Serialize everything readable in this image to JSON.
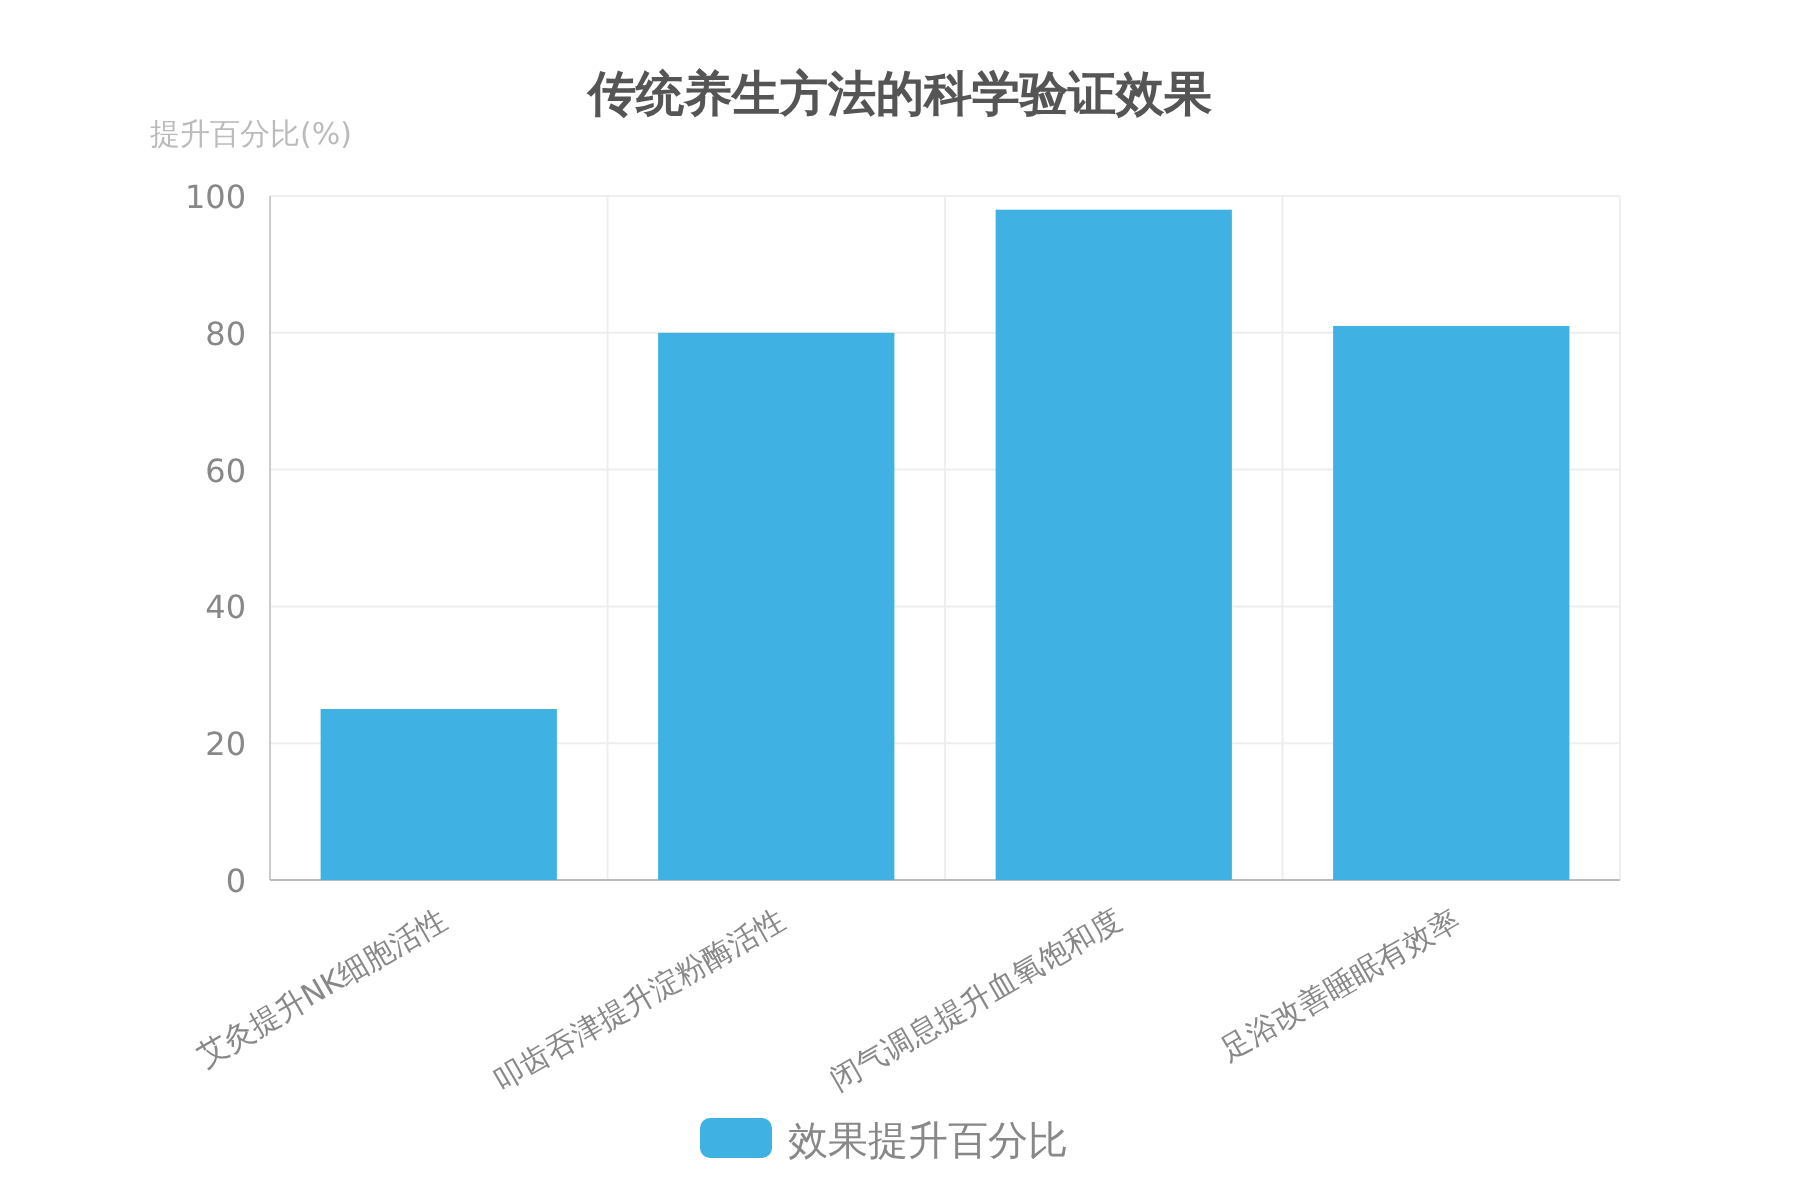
{
  "chart_data": {
    "type": "bar",
    "title": "传统养生方法的科学验证效果",
    "ylabel": "提升百分比(%)",
    "categories": [
      "艾灸提升NK细胞活性",
      "叩齿吞津提升淀粉酶活性",
      "闭气调息提升血氧饱和度",
      "足浴改善睡眠有效率"
    ],
    "series": [
      {
        "name": "效果提升百分比",
        "color": "#3fb1e3",
        "values": [
          25,
          80,
          98,
          81
        ]
      }
    ],
    "ylim": [
      0,
      100
    ],
    "yticks": [
      0,
      20,
      40,
      60,
      80,
      100
    ],
    "grid": true,
    "legend": "bottom"
  }
}
